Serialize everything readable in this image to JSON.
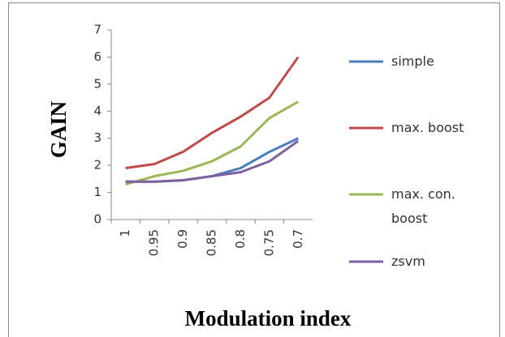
{
  "chart_data": {
    "type": "line",
    "x_label": "Modulation index",
    "y_label": "GAIN",
    "categories": [
      "1",
      "0.95",
      "0.9",
      "0.85",
      "0.8",
      "0.75",
      "0.7"
    ],
    "series": [
      {
        "name": "simple",
        "color": "#4a7ebb",
        "values": [
          1.4,
          1.4,
          1.45,
          1.6,
          1.9,
          2.5,
          3.0
        ]
      },
      {
        "name": "max. boost",
        "color": "#be4b48",
        "values": [
          1.9,
          2.05,
          2.5,
          3.2,
          3.8,
          4.5,
          6.0
        ]
      },
      {
        "name": "max. con. boost",
        "color": "#98b954",
        "values": [
          1.3,
          1.6,
          1.8,
          2.15,
          2.7,
          3.75,
          4.35
        ]
      },
      {
        "name": "zsvm",
        "color": "#7d60a0",
        "values": [
          1.4,
          1.4,
          1.45,
          1.6,
          1.75,
          2.15,
          2.9
        ]
      }
    ],
    "ylim": [
      0,
      7
    ],
    "yticks": [
      0,
      1,
      2,
      3,
      4,
      5,
      6,
      7
    ],
    "grid": false
  }
}
